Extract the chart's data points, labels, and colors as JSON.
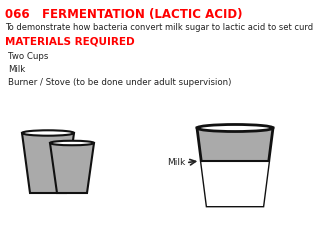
{
  "title_num": "066",
  "title_text": "   FERMENTATION (LACTIC ACID)",
  "subtitle": "To demonstrate how bacteria convert milk sugar to lactic acid to set curd",
  "section_header": "MATERIALS REQUIRED",
  "items": [
    "Two Cups",
    "Milk",
    "Burner / Stove (to be done under adult supervision)"
  ],
  "milk_label": "Milk",
  "bg_color": "#ffffff",
  "title_color": "#ff0000",
  "text_color": "#222222",
  "cup_fill": "#aaaaaa",
  "cup_edge": "#111111",
  "milk_fill": "#ffffff"
}
